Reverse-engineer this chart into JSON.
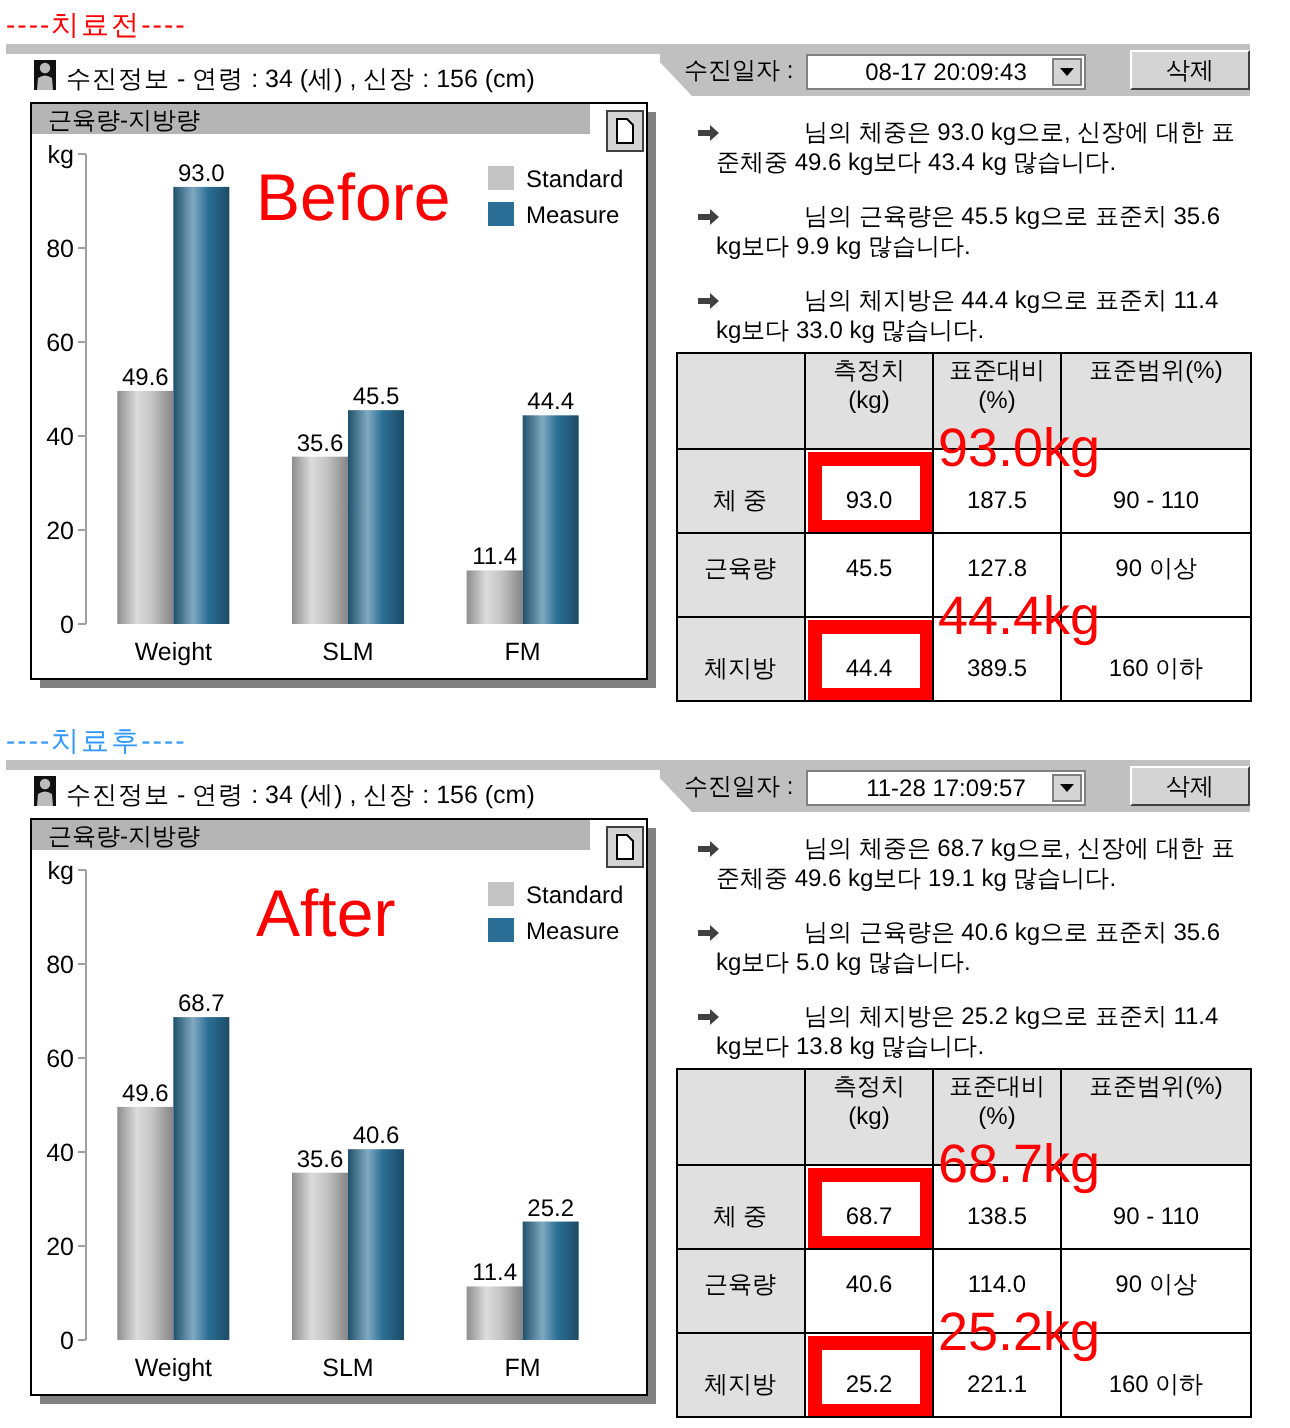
{
  "chart_data": [
    {
      "type": "bar",
      "title": "근육량-지방량",
      "subtitle": "수진정보 - 연령 : 34 (세) , 신장 : 156 (cm)",
      "annotations": [
        "----치료전----",
        "Before"
      ],
      "categories": [
        "Weight",
        "SLM",
        "FM"
      ],
      "series": [
        {
          "name": "Standard",
          "color": "#c4c4c4",
          "values": [
            49.6,
            35.6,
            11.4
          ],
          "value_labels": [
            "49.6",
            "35.6",
            "11.4"
          ]
        },
        {
          "name": "Measure",
          "color": "#2b6f96",
          "values": [
            93.0,
            45.5,
            44.4
          ],
          "value_labels": [
            "93.0",
            "45.5",
            "44.4"
          ]
        }
      ],
      "ylabel": "kg",
      "ylim": [
        0,
        100
      ],
      "yticks": [
        0,
        20,
        40,
        60,
        80,
        {
          "value": 100,
          "label": null
        }
      ],
      "legend": "top right"
    },
    {
      "type": "other",
      "annotations": [
        "수진일자 :",
        "08-17 20:09:43",
        "삭제",
        "님의 체중은 93.0 kg으로, 신장에 대한 표준체중 49.6 kg보다 43.4 kg 많습니다.",
        "님의 근육량은 45.5 kg으로 표준치 35.6 kg보다 9.9 kg 많습니다.",
        "님의 체지방은 44.4 kg으로 표준치 11.4 kg보다 33.0 kg 많습니다.",
        {
          "text": "93.0kg",
          "x": "측정치 (kg)",
          "y": "체 중"
        },
        {
          "text": "44.4kg",
          "x": "측정치 (kg)",
          "y": "체지방"
        }
      ],
      "categories": [
        "측정치 (kg)",
        "표준대비 (%)",
        "표준범위(%)"
      ],
      "y_categories": [
        "체 중",
        "근육량",
        "체지방"
      ],
      "cell_labels": [
        [
          "93.0",
          "187.5",
          "90 - 110"
        ],
        [
          "45.5",
          "127.8",
          "90 이상"
        ],
        [
          "44.4",
          "389.5",
          "160 이하"
        ]
      ]
    },
    {
      "type": "bar",
      "title": "근육량-지방량",
      "subtitle": "수진정보 - 연령 : 34 (세) , 신장 : 156 (cm)",
      "annotations": [
        "----치료후----",
        "After"
      ],
      "categories": [
        "Weight",
        "SLM",
        "FM"
      ],
      "series": [
        {
          "name": "Standard",
          "color": "#c4c4c4",
          "values": [
            49.6,
            35.6,
            11.4
          ],
          "value_labels": [
            "49.6",
            "35.6",
            "11.4"
          ]
        },
        {
          "name": "Measure",
          "color": "#2b6f96",
          "values": [
            68.7,
            40.6,
            25.2
          ],
          "value_labels": [
            "68.7",
            "40.6",
            "25.2"
          ]
        }
      ],
      "ylabel": "kg",
      "ylim": [
        0,
        100
      ],
      "yticks": [
        0,
        20,
        40,
        60,
        80,
        {
          "value": 100,
          "label": null
        }
      ],
      "legend": "top right"
    },
    {
      "type": "other",
      "annotations": [
        "수진일자 :",
        "11-28 17:09:57",
        "삭제",
        "님의 체중은 68.7 kg으로, 신장에 대한 표준체중 49.6 kg보다 19.1 kg 많습니다.",
        "님의 근육량은 40.6 kg으로 표준치 35.6 kg보다 5.0 kg 많습니다.",
        "님의 체지방은 25.2 kg으로 표준치 11.4 kg보다 13.8 kg 많습니다.",
        {
          "text": "68.7kg",
          "x": "측정치 (kg)",
          "y": "체 중"
        },
        {
          "text": "25.2kg",
          "x": "측정치 (kg)",
          "y": "체지방"
        }
      ],
      "categories": [
        "측정치 (kg)",
        "표준대비 (%)",
        "표준범위(%)"
      ],
      "y_categories": [
        "체 중",
        "근육량",
        "체지방"
      ],
      "cell_labels": [
        [
          "68.7",
          "138.5",
          "90 - 110"
        ],
        [
          "40.6",
          "114.0",
          "90 이상"
        ],
        [
          "25.2",
          "221.1",
          "160 이하"
        ]
      ]
    }
  ]
}
